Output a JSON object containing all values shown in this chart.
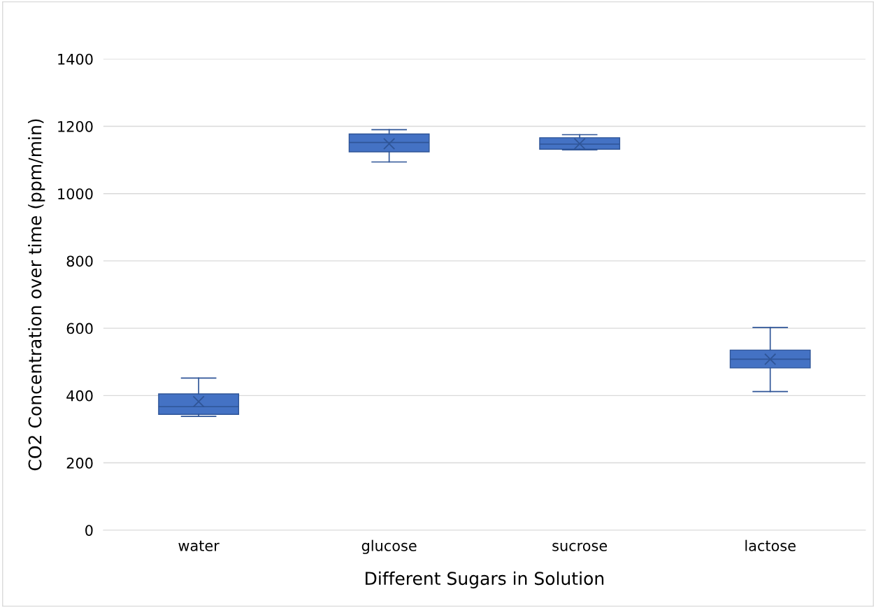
{
  "chart_data": {
    "type": "box",
    "xlabel": "Different Sugars in Solution",
    "ylabel": "CO2 Concentration over time (ppm/min)",
    "categories": [
      "water",
      "glucose",
      "sucrose",
      "lactose"
    ],
    "boxes": [
      {
        "low": 338,
        "q1": 344,
        "median": 367,
        "q3": 405,
        "high": 452,
        "mean": 382
      },
      {
        "low": 1094,
        "q1": 1124,
        "median": 1152,
        "q3": 1177,
        "high": 1190,
        "mean": 1148
      },
      {
        "low": 1130,
        "q1": 1132,
        "median": 1147,
        "q3": 1166,
        "high": 1175,
        "mean": 1148
      },
      {
        "low": 412,
        "q1": 482,
        "median": 508,
        "q3": 535,
        "high": 602,
        "mean": 508
      }
    ],
    "color": "#4472c4",
    "ylim": [
      0,
      1400
    ],
    "yticks": [
      0,
      200,
      400,
      600,
      800,
      1000,
      1200,
      1400
    ],
    "grid": "y",
    "legend": false
  }
}
